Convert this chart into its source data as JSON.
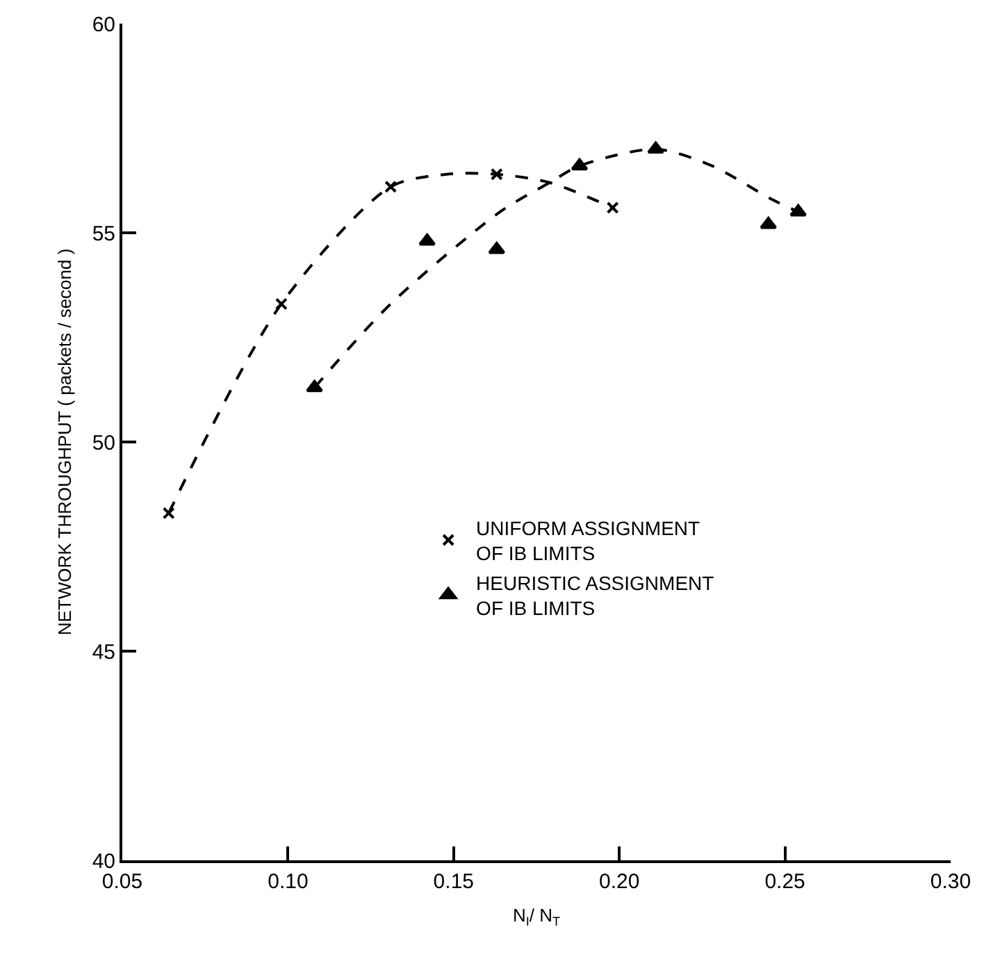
{
  "chart_data": {
    "type": "scatter",
    "xlabel": "N$_{I}$/ N$_{T}$",
    "ylabel": "NETWORK THROUGHPUT ( packets / second )",
    "xlim": [
      0.05,
      0.3
    ],
    "xticks": [
      0.05,
      {
        "value": 0.1,
        "label": "0.10"
      },
      0.15,
      {
        "value": 0.2,
        "label": "0.20"
      },
      0.25,
      {
        "value": 0.3,
        "label": "0.30"
      }
    ],
    "ylim": [
      40,
      60
    ],
    "yticks": [
      40,
      45,
      50,
      55,
      60
    ],
    "grid": false,
    "legend": "right",
    "series": [
      {
        "name": "UNIFORM ASSIGNMENT\nOF IB LIMITS",
        "marker": "cross",
        "color": "#000000",
        "x": [
          0.064,
          0.098,
          0.131,
          0.163,
          0.198
        ],
        "values": [
          48.3,
          53.3,
          56.1,
          56.4,
          55.6
        ]
      },
      {
        "name": "HEURISTIC ASSIGNMENT\nOF IB LIMITS",
        "marker": "triangle",
        "color": "#000000",
        "x": [
          0.108,
          0.142,
          0.163,
          0.188,
          0.211,
          0.245,
          0.254
        ],
        "values": [
          51.3,
          54.8,
          54.6,
          56.6,
          57.0,
          55.2,
          55.5
        ]
      },
      {
        "type": "line",
        "line_style": "dashed",
        "color": "#000000",
        "x": [
          0.064,
          0.098,
          0.131,
          0.148,
          0.163,
          0.179,
          0.198
        ],
        "values": [
          48.3,
          53.3,
          56.1,
          56.4,
          56.4,
          56.2,
          55.6
        ]
      },
      {
        "type": "line",
        "line_style": "dashed",
        "color": "#000000",
        "x": [
          0.108,
          0.131,
          0.164,
          0.179,
          0.188,
          0.211,
          0.228,
          0.246,
          0.254
        ],
        "values": [
          51.3,
          53.3,
          55.5,
          56.2,
          56.6,
          57.0,
          56.6,
          55.8,
          55.5
        ]
      }
    ]
  }
}
